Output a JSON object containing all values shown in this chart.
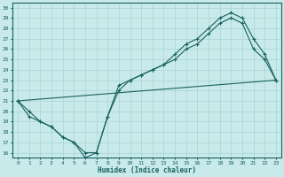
{
  "xlabel": "Humidex (Indice chaleur)",
  "xlim": [
    -0.5,
    23.5
  ],
  "ylim": [
    15.5,
    30.5
  ],
  "xticks": [
    0,
    1,
    2,
    3,
    4,
    5,
    6,
    7,
    8,
    9,
    10,
    11,
    12,
    13,
    14,
    15,
    16,
    17,
    18,
    19,
    20,
    21,
    22,
    23
  ],
  "yticks": [
    16,
    17,
    18,
    19,
    20,
    21,
    22,
    23,
    24,
    25,
    26,
    27,
    28,
    29,
    30
  ],
  "bg_color": "#c8eaea",
  "line_color": "#1a6060",
  "grid_color": "#a8d4d4",
  "line1_x": [
    0,
    1,
    2,
    3,
    4,
    5,
    6,
    7,
    8,
    9,
    10,
    11,
    12,
    13,
    14,
    15,
    16,
    17,
    18,
    19,
    20,
    21,
    22,
    23
  ],
  "line1_y": [
    21,
    20,
    19,
    18.5,
    17.5,
    17,
    16,
    16,
    19.5,
    22,
    23,
    23.5,
    24,
    24.5,
    25,
    26,
    26.5,
    27.5,
    28.5,
    29,
    28.5,
    26,
    25,
    23
  ],
  "line2_x": [
    0,
    1,
    2,
    3,
    4,
    5,
    6,
    7,
    8,
    9,
    10,
    11,
    12,
    13,
    14,
    15,
    16,
    17,
    18,
    19,
    20,
    21,
    22,
    23
  ],
  "line2_y": [
    21,
    19.5,
    19,
    18.5,
    17.5,
    17,
    15.5,
    16,
    19.5,
    22.5,
    23,
    23.5,
    24,
    24.5,
    25.5,
    26.5,
    27,
    28,
    29,
    29.5,
    29,
    27,
    25.5,
    23
  ],
  "line3_x": [
    0,
    23
  ],
  "line3_y": [
    21,
    23
  ]
}
